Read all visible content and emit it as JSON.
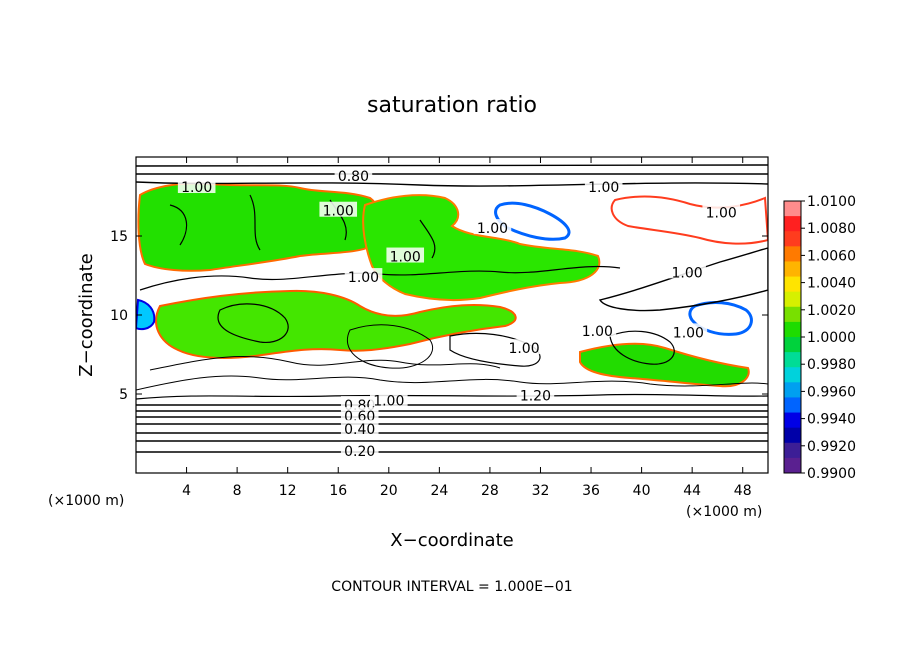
{
  "chart_data": {
    "type": "heatmap",
    "title": "saturation ratio",
    "xlabel": "X−coordinate",
    "ylabel": "Z−coordinate",
    "x_unit": "(×1000 m)",
    "x_unit_right": "(×1000 m)",
    "xlim": [
      0,
      50
    ],
    "ylim": [
      0,
      20
    ],
    "x_ticks": [
      4,
      8,
      12,
      16,
      20,
      24,
      28,
      32,
      36,
      40,
      44,
      48
    ],
    "y_ticks": [
      5,
      10,
      15
    ],
    "footer": "CONTOUR INTERVAL = 1.000E−01",
    "colorbar": {
      "range": [
        0.99,
        1.01
      ],
      "labels": [
        "1.0100",
        "1.0080",
        "1.0060",
        "1.0040",
        "1.0020",
        "1.0000",
        "0.9980",
        "0.9960",
        "0.9940",
        "0.9920",
        "0.9900"
      ],
      "colors": [
        "#ff8c8c",
        "#ff2020",
        "#ff3c1e",
        "#ff7a00",
        "#ffb400",
        "#ffe400",
        "#d6f000",
        "#78e000",
        "#1edc00",
        "#00d23c",
        "#00dc96",
        "#00d2dc",
        "#00a0f0",
        "#0064ff",
        "#0000e6",
        "#0000a8",
        "#3c1e96",
        "#5a2090"
      ]
    },
    "contour_labels": [
      {
        "text": "0.80",
        "x": 17.2,
        "y": 18.8
      },
      {
        "text": "1.00",
        "x": 4.8,
        "y": 18.1
      },
      {
        "text": "1.00",
        "x": 37.0,
        "y": 18.1
      },
      {
        "text": "1.00",
        "x": 16.0,
        "y": 16.6
      },
      {
        "text": "1.00",
        "x": 28.2,
        "y": 15.5
      },
      {
        "text": "1.00",
        "x": 21.3,
        "y": 13.7
      },
      {
        "text": "1.00",
        "x": 18.0,
        "y": 12.4
      },
      {
        "text": "1.00",
        "x": 43.6,
        "y": 12.7
      },
      {
        "text": "1.00",
        "x": 46.3,
        "y": 16.5
      },
      {
        "text": "1.00",
        "x": 36.5,
        "y": 9.0
      },
      {
        "text": "1.00",
        "x": 43.7,
        "y": 8.9
      },
      {
        "text": "1.00",
        "x": 30.7,
        "y": 7.9
      },
      {
        "text": "1.20",
        "x": 31.6,
        "y": 4.9
      },
      {
        "text": "0.80",
        "x": 17.7,
        "y": 4.3
      },
      {
        "text": "0.60",
        "x": 17.7,
        "y": 3.6
      },
      {
        "text": "1.00",
        "x": 20.0,
        "y": 4.6
      },
      {
        "text": "0.40",
        "x": 17.7,
        "y": 2.8
      },
      {
        "text": "0.20",
        "x": 17.7,
        "y": 1.4
      }
    ],
    "legend": "colorbar at right"
  }
}
